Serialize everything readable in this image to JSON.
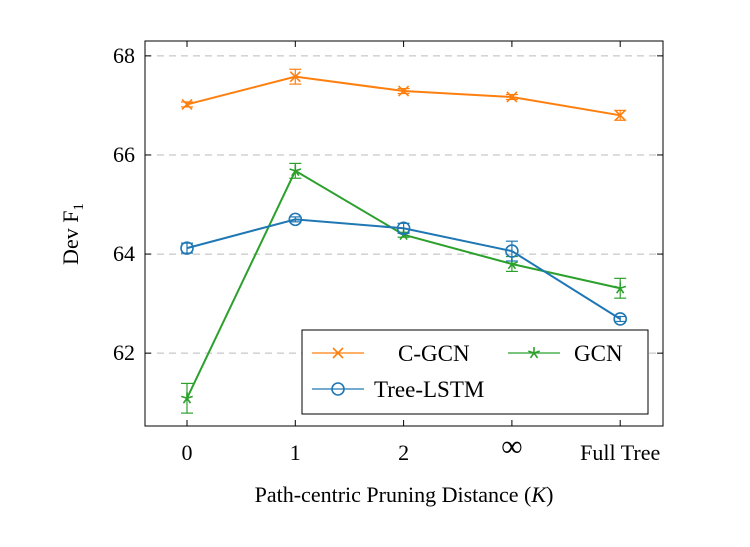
{
  "chart_data": {
    "type": "line",
    "title": "",
    "xlabel": "Path-centric Pruning Distance (K)",
    "ylabel": "Dev F1",
    "categories": [
      "0",
      "1",
      "2",
      "∞",
      "Full Tree"
    ],
    "ylim": [
      60.53,
      68.3
    ],
    "yticks": [
      62,
      64,
      66,
      68
    ],
    "grid": "horizontal dashed",
    "legend": "bottom-right",
    "series": [
      {
        "name": "C-GCN",
        "color": "#ff7f0e",
        "marker": "x",
        "values": [
          67.02,
          67.58,
          67.29,
          67.17,
          66.8
        ],
        "errors": [
          0.05,
          0.15,
          0.05,
          0.05,
          0.1
        ]
      },
      {
        "name": "GCN",
        "color": "#2ca02c",
        "marker": "star",
        "values": [
          61.09,
          65.68,
          64.39,
          63.8,
          63.31
        ],
        "errors": [
          0.3,
          0.15,
          0.05,
          0.15,
          0.2
        ]
      },
      {
        "name": "Tree-LSTM",
        "color": "#1f77b4",
        "marker": "circle",
        "values": [
          64.12,
          64.7,
          64.52,
          64.06,
          62.69
        ],
        "errors": [
          0.1,
          0.05,
          0.1,
          0.2,
          0.05
        ]
      }
    ]
  }
}
